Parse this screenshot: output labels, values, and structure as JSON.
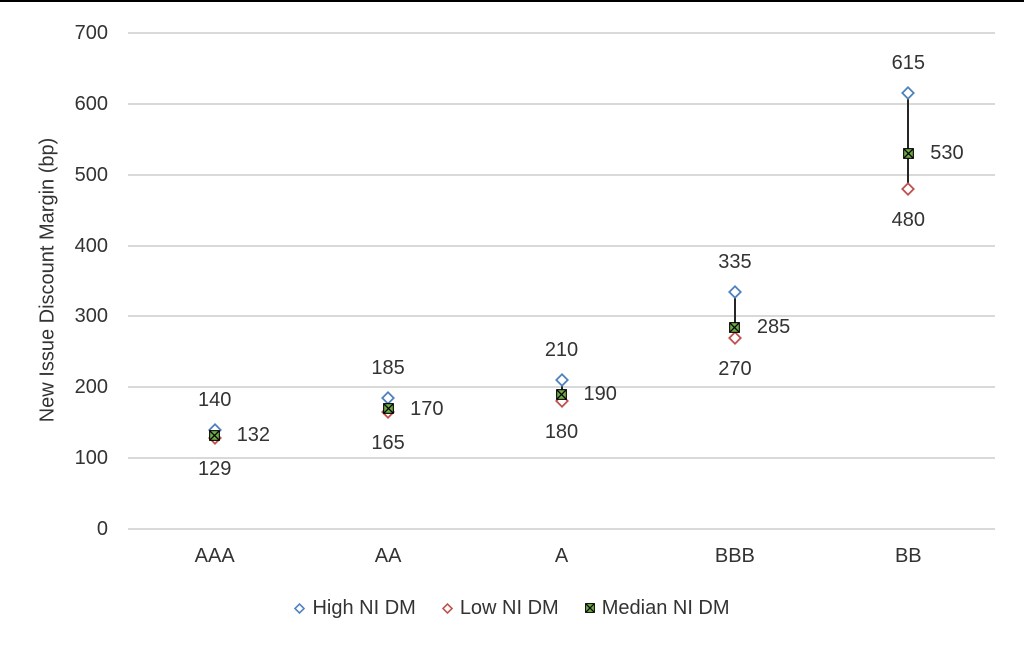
{
  "page": {
    "background": "#ffffff",
    "top_border_color": "#000000"
  },
  "chart_data": {
    "type": "scatter",
    "subtype": "high-low-median",
    "title": "",
    "xlabel": "",
    "ylabel": "New Issue Discount Margin (bp)",
    "categories": [
      "AAA",
      "AA",
      "A",
      "BBB",
      "BB"
    ],
    "series": [
      {
        "name": "High NI DM",
        "marker": "diamond-outline",
        "color": "#4F81BD",
        "values": [
          140,
          185,
          210,
          335,
          615
        ],
        "data_label_position": "above"
      },
      {
        "name": "Low NI DM",
        "marker": "diamond-outline",
        "color": "#C0504D",
        "values": [
          129,
          165,
          180,
          270,
          480
        ],
        "data_label_position": "below"
      },
      {
        "name": "Median NI DM",
        "marker": "square-x",
        "color": "#70AD47",
        "values": [
          132,
          170,
          190,
          285,
          530
        ],
        "data_label_position": "right"
      }
    ],
    "ylim": [
      0,
      700
    ],
    "yticks": [
      0,
      100,
      200,
      300,
      400,
      500,
      600,
      700
    ],
    "grid": true,
    "gridline_color": "#D9D9D9",
    "hilo_line_color": "#262626",
    "text_color": "#333333",
    "legend_position": "bottom"
  }
}
